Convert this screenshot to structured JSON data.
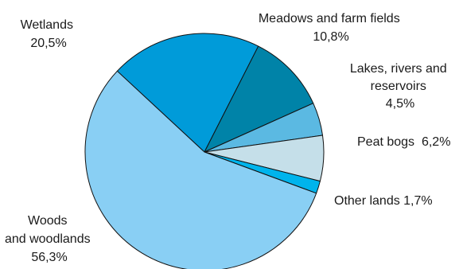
{
  "chart_data": {
    "type": "pie",
    "title": "",
    "slices": [
      {
        "name": "Wetlands",
        "value": 20.5,
        "value_label": "20,5%",
        "color": "#009bd9"
      },
      {
        "name": "Meadows and farm fields",
        "value": 10.8,
        "value_label": "10,8%",
        "color": "#0083a8"
      },
      {
        "name": "Lakes, rivers and reservoirs",
        "value": 4.5,
        "value_label": "4,5%",
        "color": "#5bb9e2"
      },
      {
        "name": "Peat bogs",
        "value": 6.2,
        "value_label": "6,2%",
        "color": "#c5dfe9"
      },
      {
        "name": "Other lands",
        "value": 1.7,
        "value_label": "1,7%",
        "color": "#00b4ec"
      },
      {
        "name": "Woods and woodlands",
        "value": 56.3,
        "value_label": "56,3%",
        "color": "#89cff4"
      }
    ]
  },
  "labels": {
    "wetlands": [
      "Wetlands",
      "20,5%"
    ],
    "meadows": [
      "Meadows and farm fields",
      "10,8%"
    ],
    "lakes": [
      "Lakes, rivers and",
      "reservoirs",
      "4,5%"
    ],
    "peat": [
      "Peat bogs  6,2%"
    ],
    "other": [
      "Other lands 1,7%"
    ],
    "woods": [
      "Woods",
      "and woodlands",
      "56,3%"
    ]
  }
}
